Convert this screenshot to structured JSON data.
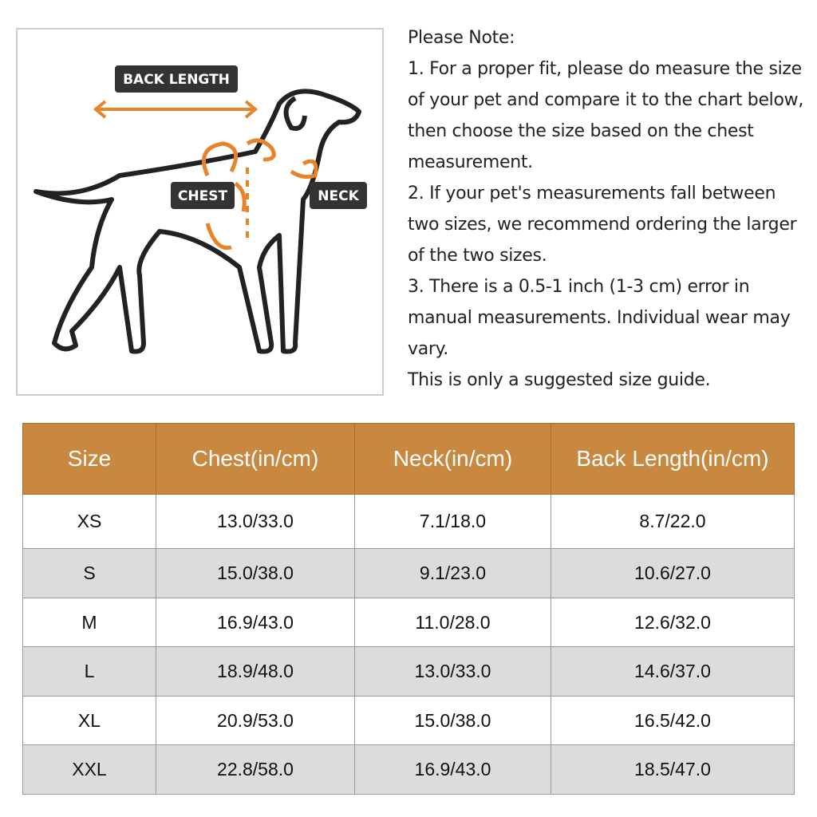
{
  "diagram": {
    "labels": {
      "back_length": "BACK LENGTH",
      "chest": "CHEST",
      "neck": "NECK"
    }
  },
  "note": {
    "title": "Please Note:",
    "paragraphs": [
      "1. For a proper fit, please do measure the size of your pet and compare it to the chart below, then choose the size based on the chest measurement.",
      "2. If your pet's measurements fall between two sizes, we recommend ordering the larger of the two sizes.",
      "3. There is a 0.5-1 inch (1-3 cm) error in manual measurements. Individual wear may vary.",
      "This is only a suggested size guide."
    ]
  },
  "table": {
    "header": [
      "Size",
      "Chest(in/cm)",
      "Neck(in/cm)",
      "Back Length(in/cm)"
    ],
    "rows": [
      [
        "XS",
        "13.0/33.0",
        "7.1/18.0",
        "8.7/22.0"
      ],
      [
        "S",
        "15.0/38.0",
        "9.1/23.0",
        "10.6/27.0"
      ],
      [
        "M",
        "16.9/43.0",
        "11.0/28.0",
        "12.6/32.0"
      ],
      [
        "L",
        "18.9/48.0",
        "13.0/33.0",
        "14.6/37.0"
      ],
      [
        "XL",
        "20.9/53.0",
        "15.0/38.0",
        "16.5/42.0"
      ],
      [
        "XXL",
        "22.8/58.0",
        "16.9/43.0",
        "18.5/47.0"
      ]
    ]
  }
}
